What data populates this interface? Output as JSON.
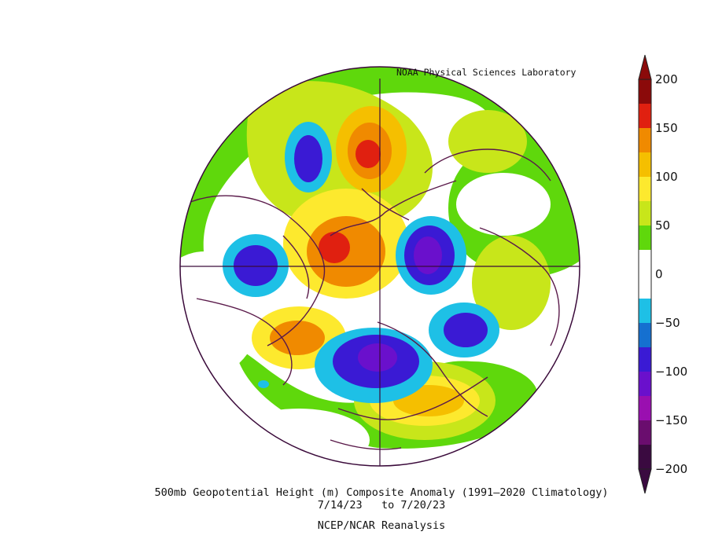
{
  "credit": "NOAA Physical Sciences Laboratory",
  "title": "500mb Geopotential Height (m) Composite Anomaly (1991–2020 Climatology)",
  "dates": "7/14/23   to 7/20/23",
  "source": "NCEP/NCAR Reanalysis",
  "colorbar": {
    "labels": [
      "200",
      "150",
      "100",
      "50",
      "0",
      "−50",
      "−100",
      "−150",
      "−200"
    ],
    "colors": [
      "#8b0a0a",
      "#e02010",
      "#f08a00",
      "#f5bf00",
      "#fde92e",
      "#c8e61a",
      "#5fd80c",
      "#ffffff",
      "#ffffff",
      "#1ec0e6",
      "#1570d0",
      "#3a1ad4",
      "#6a10cc",
      "#9a0fb0",
      "#6a0d6e",
      "#3a0a40"
    ]
  },
  "colors": {
    "green": "#5fd80c",
    "light_green": "#c8e61a",
    "yellow": "#f5bf00",
    "orange": "#f08a00",
    "red": "#e02010",
    "dark_red": "#8b0a0a",
    "cyan": "#1ec0e6",
    "blue": "#1570d0",
    "indigo": "#3a1ad4",
    "purple": "#6a10cc",
    "magenta": "#9a0fb0",
    "border": "#5a1a4a"
  }
}
